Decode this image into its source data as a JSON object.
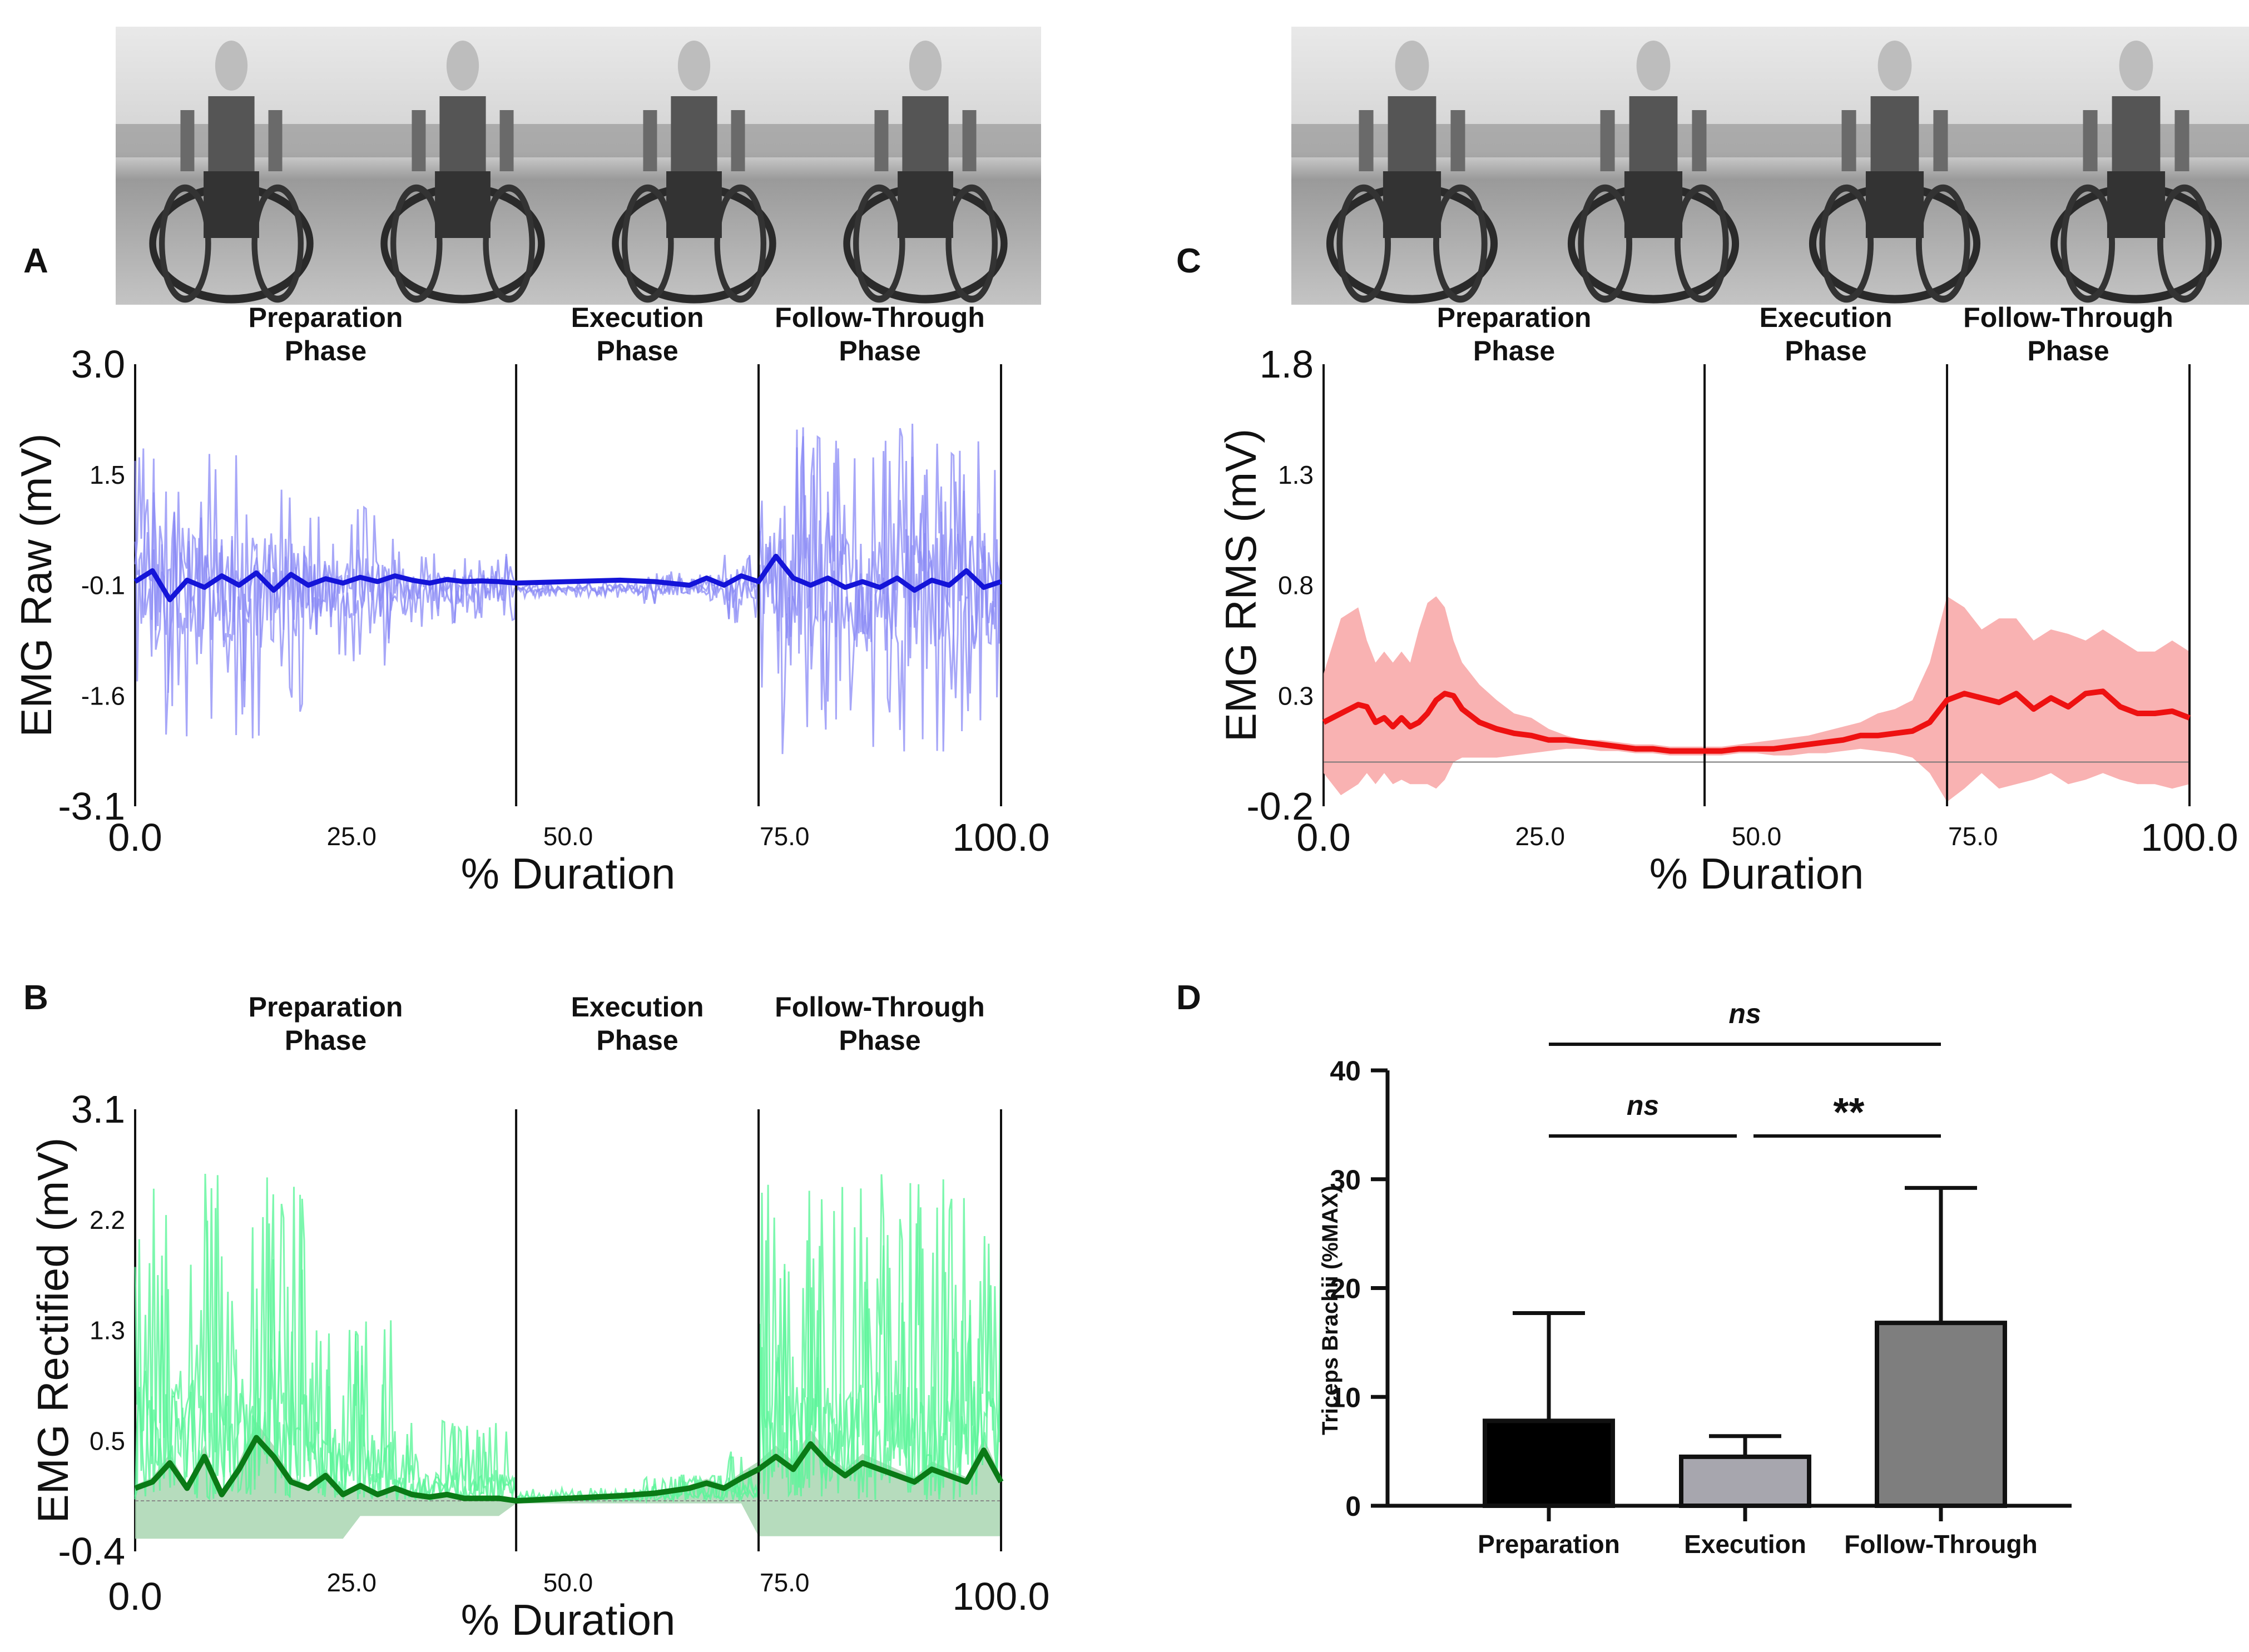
{
  "figure": {
    "panel_letters": [
      "A",
      "B",
      "C",
      "D"
    ],
    "photo_strips": [
      {
        "frames": 4,
        "description_hidden": true
      },
      {
        "frames": 4,
        "description_hidden": true
      }
    ]
  },
  "chart_data": [
    {
      "id": "A",
      "type": "line",
      "phases": [
        {
          "label1": "Preparation",
          "label2": "Phase"
        },
        {
          "label1": "Execution",
          "label2": "Phase"
        },
        {
          "label1": "Follow-Through",
          "label2": "Phase"
        }
      ],
      "phase_boundaries": [
        0,
        44,
        72,
        100
      ],
      "ylabel": "EMG Raw (mV)",
      "xlabel": "% Duration",
      "ylim": [
        -3.1,
        3.0
      ],
      "yticks": [
        "3.0",
        "1.5",
        "-0.1",
        "-1.6",
        "-3.1"
      ],
      "xticks_major": [
        "0.0",
        "100.0"
      ],
      "xticks_minor": [
        "25.0",
        "50.0",
        "75.0"
      ],
      "series": [
        {
          "name": "raw trials",
          "color": "#8a8af5"
        },
        {
          "name": "mean",
          "color": "#1414d8",
          "x": [
            0,
            2,
            4,
            6,
            8,
            10,
            12,
            14,
            16,
            18,
            20,
            22,
            24,
            26,
            28,
            30,
            32,
            34,
            36,
            38,
            40,
            42,
            44,
            50,
            56,
            60,
            64,
            66,
            68,
            70,
            72,
            74,
            76,
            78,
            80,
            82,
            84,
            86,
            88,
            90,
            92,
            94,
            96,
            98,
            100
          ],
          "values": [
            0.0,
            0.15,
            -0.25,
            0.02,
            -0.08,
            0.08,
            -0.05,
            0.12,
            -0.12,
            0.1,
            -0.05,
            0.04,
            -0.02,
            0.06,
            0.0,
            0.08,
            0.02,
            -0.02,
            0.03,
            0.0,
            0.01,
            0.0,
            -0.02,
            0.0,
            0.02,
            0.0,
            -0.05,
            0.05,
            -0.05,
            0.08,
            0.0,
            0.35,
            0.05,
            -0.05,
            0.05,
            -0.08,
            0.0,
            -0.08,
            0.05,
            -0.12,
            0.02,
            -0.05,
            0.15,
            -0.08,
            0.0
          ]
        }
      ],
      "envelope": {
        "prep_amp": 2.1,
        "exec_amp": 0.4,
        "follow_amp": 2.3
      }
    },
    {
      "id": "B",
      "type": "line",
      "phases": [
        {
          "label1": "Preparation",
          "label2": "Phase"
        },
        {
          "label1": "Execution",
          "label2": "Phase"
        },
        {
          "label1": "Follow-Through",
          "label2": "Phase"
        }
      ],
      "phase_boundaries": [
        0,
        44,
        72,
        100
      ],
      "ylabel": "EMG Rectified (mV)",
      "xlabel": "% Duration",
      "ylim": [
        -0.4,
        3.1
      ],
      "yticks": [
        "3.1",
        "2.2",
        "1.3",
        "0.5",
        "-0.4"
      ],
      "xticks_major": [
        "0.0",
        "100.0"
      ],
      "xticks_minor": [
        "25.0",
        "50.0",
        "75.0"
      ],
      "series": [
        {
          "name": "rectified trials",
          "color": "#5df59a"
        },
        {
          "name": "mean",
          "color": "#0a7a16",
          "x": [
            0,
            2,
            4,
            6,
            8,
            10,
            12,
            14,
            16,
            18,
            20,
            22,
            24,
            26,
            28,
            30,
            32,
            34,
            36,
            38,
            40,
            42,
            44,
            50,
            56,
            60,
            64,
            66,
            68,
            70,
            72,
            74,
            76,
            78,
            80,
            82,
            84,
            86,
            88,
            90,
            92,
            94,
            96,
            98,
            100
          ],
          "values": [
            0.1,
            0.15,
            0.3,
            0.1,
            0.35,
            0.05,
            0.25,
            0.5,
            0.35,
            0.15,
            0.1,
            0.2,
            0.05,
            0.12,
            0.05,
            0.1,
            0.05,
            0.03,
            0.05,
            0.02,
            0.02,
            0.02,
            0.0,
            0.02,
            0.04,
            0.06,
            0.1,
            0.14,
            0.1,
            0.18,
            0.25,
            0.35,
            0.25,
            0.45,
            0.3,
            0.2,
            0.3,
            0.25,
            0.2,
            0.15,
            0.25,
            0.2,
            0.15,
            0.4,
            0.15
          ]
        }
      ],
      "shadow": {
        "color": "#a9d6b1"
      }
    },
    {
      "id": "C",
      "type": "area",
      "phases": [
        {
          "label1": "Preparation",
          "label2": "Phase"
        },
        {
          "label1": "Execution",
          "label2": "Phase"
        },
        {
          "label1": "Follow-Through",
          "label2": "Phase"
        }
      ],
      "phase_boundaries": [
        0,
        44,
        72,
        100
      ],
      "ylabel": "EMG RMS (mV)",
      "xlabel": "% Duration",
      "ylim": [
        -0.2,
        1.8
      ],
      "yticks": [
        "1.8",
        "1.3",
        "0.8",
        "0.3",
        "-0.2"
      ],
      "xticks_major": [
        "0.0",
        "100.0"
      ],
      "xticks_minor": [
        "25.0",
        "50.0",
        "75.0"
      ],
      "series": [
        {
          "name": "mean",
          "color": "#ee1111",
          "x": [
            0,
            2,
            4,
            5,
            6,
            7,
            8,
            9,
            10,
            11,
            12,
            13,
            14,
            15,
            16,
            18,
            20,
            22,
            24,
            26,
            28,
            30,
            32,
            34,
            36,
            38,
            40,
            42,
            44,
            46,
            48,
            50,
            52,
            54,
            56,
            58,
            60,
            62,
            64,
            66,
            68,
            70,
            72,
            74,
            76,
            78,
            80,
            82,
            84,
            86,
            88,
            90,
            92,
            94,
            96,
            98,
            100
          ],
          "values": [
            0.18,
            0.22,
            0.26,
            0.25,
            0.18,
            0.2,
            0.16,
            0.2,
            0.16,
            0.18,
            0.22,
            0.28,
            0.31,
            0.3,
            0.24,
            0.18,
            0.15,
            0.13,
            0.12,
            0.1,
            0.1,
            0.09,
            0.08,
            0.07,
            0.06,
            0.06,
            0.05,
            0.05,
            0.05,
            0.05,
            0.06,
            0.06,
            0.06,
            0.07,
            0.08,
            0.09,
            0.1,
            0.12,
            0.12,
            0.13,
            0.14,
            0.18,
            0.28,
            0.31,
            0.29,
            0.27,
            0.31,
            0.24,
            0.29,
            0.25,
            0.31,
            0.32,
            0.25,
            0.22,
            0.22,
            0.23,
            0.2
          ]
        },
        {
          "name": "sd band",
          "color": "#f8aaaa",
          "upper": [
            0.4,
            0.65,
            0.7,
            0.55,
            0.45,
            0.5,
            0.45,
            0.5,
            0.45,
            0.6,
            0.72,
            0.75,
            0.7,
            0.55,
            0.45,
            0.35,
            0.28,
            0.22,
            0.2,
            0.15,
            0.12,
            0.1,
            0.1,
            0.09,
            0.08,
            0.08,
            0.07,
            0.07,
            0.07,
            0.07,
            0.08,
            0.09,
            0.1,
            0.11,
            0.12,
            0.14,
            0.16,
            0.18,
            0.22,
            0.24,
            0.28,
            0.45,
            0.75,
            0.7,
            0.6,
            0.65,
            0.65,
            0.55,
            0.6,
            0.58,
            0.55,
            0.6,
            0.55,
            0.5,
            0.5,
            0.55,
            0.5
          ],
          "lower": [
            -0.05,
            -0.15,
            -0.1,
            -0.05,
            -0.1,
            -0.05,
            -0.1,
            -0.08,
            -0.1,
            -0.1,
            -0.1,
            -0.12,
            -0.08,
            0.0,
            0.02,
            0.02,
            0.02,
            0.03,
            0.04,
            0.05,
            0.06,
            0.06,
            0.05,
            0.05,
            0.04,
            0.04,
            0.03,
            0.03,
            0.03,
            0.03,
            0.04,
            0.04,
            0.03,
            0.03,
            0.04,
            0.04,
            0.05,
            0.06,
            0.05,
            0.04,
            0.02,
            -0.05,
            -0.18,
            -0.12,
            -0.05,
            -0.12,
            -0.1,
            -0.08,
            -0.05,
            -0.1,
            -0.08,
            -0.05,
            -0.08,
            -0.1,
            -0.1,
            -0.12,
            -0.1
          ]
        }
      ]
    },
    {
      "id": "D",
      "type": "bar",
      "categories": [
        "Preparation",
        "Execution",
        "Follow-Through"
      ],
      "values": [
        7.8,
        4.5,
        16.8
      ],
      "errors": [
        9.9,
        1.9,
        12.4
      ],
      "colors": [
        "#000000",
        "#a7a6ae",
        "#7e7e7e"
      ],
      "ylabel": "Triceps Brachii (%MAX)",
      "ylim": [
        0,
        40
      ],
      "yticks": [
        "0",
        "10",
        "20",
        "30",
        "40"
      ],
      "significance": [
        {
          "from": 0,
          "to": 2,
          "label": "ns",
          "level": "top"
        },
        {
          "from": 0,
          "to": 1,
          "label": "ns",
          "level": "low"
        },
        {
          "from": 1,
          "to": 2,
          "label": "**",
          "level": "low"
        }
      ]
    }
  ]
}
